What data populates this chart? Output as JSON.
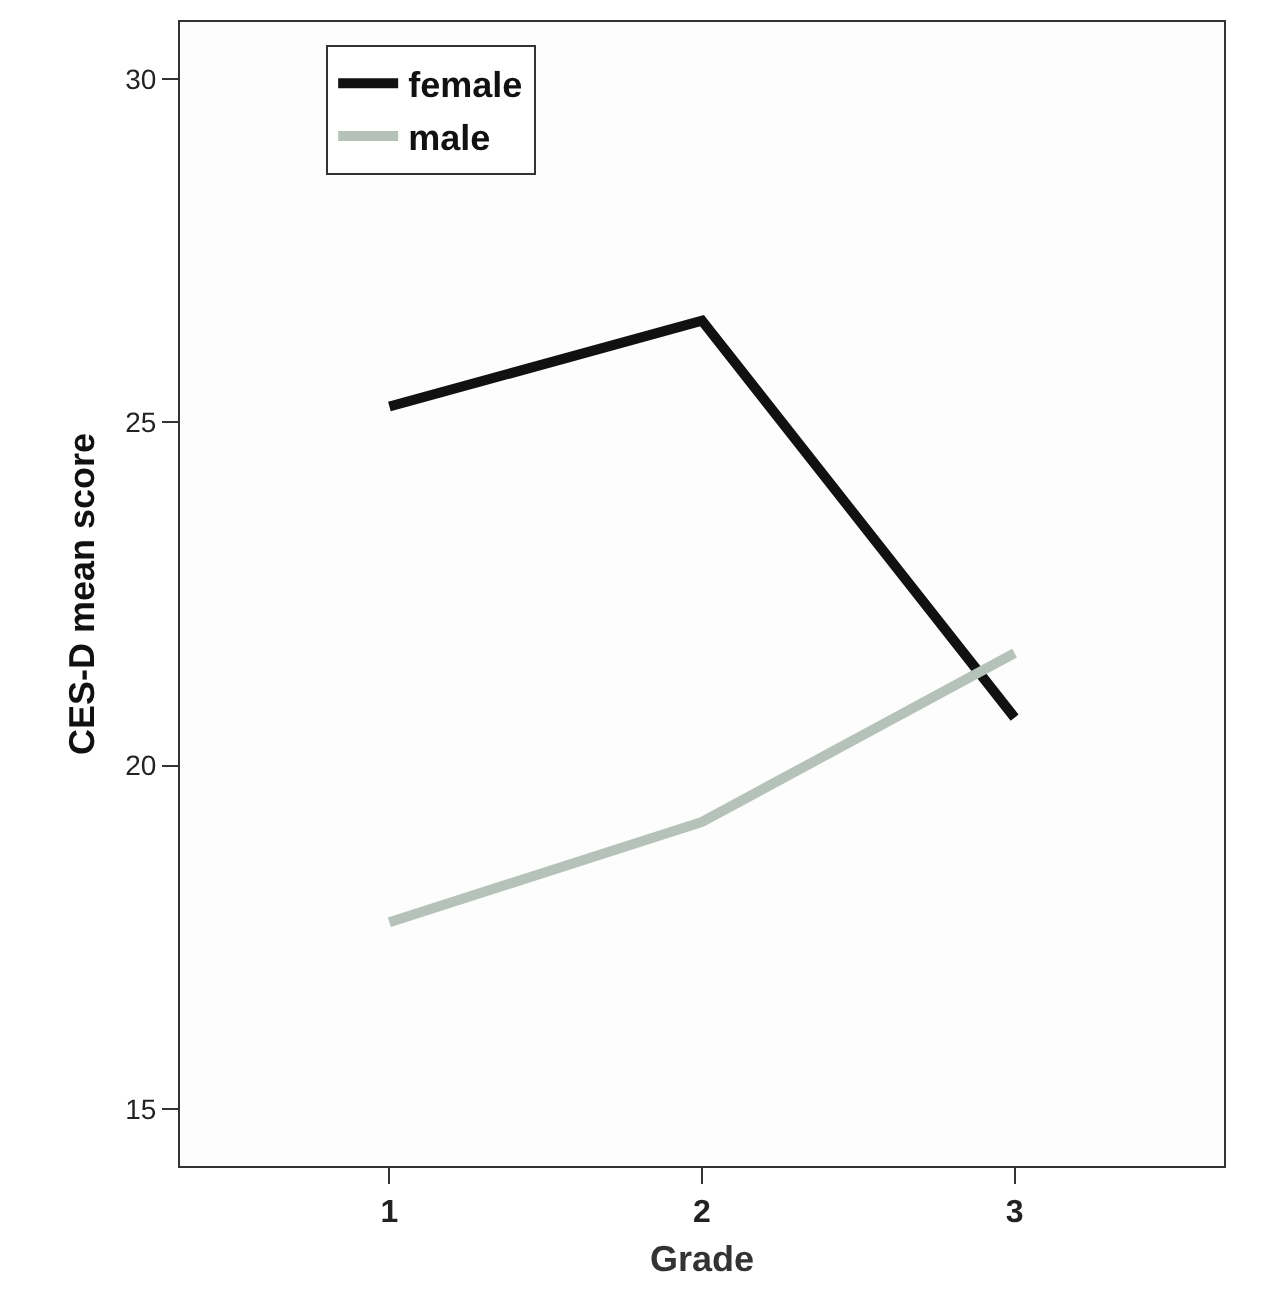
{
  "chart_data": {
    "type": "line",
    "xlabel": "Grade",
    "ylabel": "CES-D mean score",
    "x": [
      1,
      2,
      3
    ],
    "xlim": [
      0.33,
      3.67
    ],
    "xticks": [
      1,
      2,
      3
    ],
    "ylim": [
      14.17,
      30.83
    ],
    "yticks": [
      15,
      20,
      25,
      30
    ],
    "series": [
      {
        "name": "female",
        "color": "#111111",
        "values": [
          25.23,
          26.48,
          20.7
        ]
      },
      {
        "name": "male",
        "color": "#b5c2b9",
        "values": [
          17.72,
          19.18,
          21.64
        ]
      }
    ],
    "legend": "top left",
    "marker": "none",
    "line_style": "solid"
  }
}
